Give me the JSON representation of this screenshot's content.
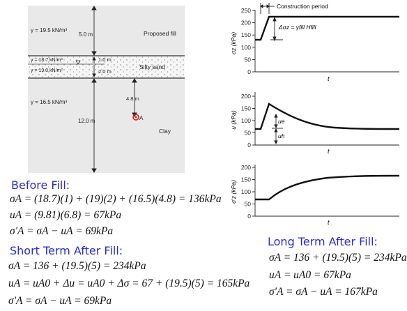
{
  "profile": {
    "layers": [
      {
        "unit_weight": "γ = 19.5 kN/m³",
        "thickness": "5.0 m",
        "name": "Proposed fill"
      },
      {
        "unit_weight": "γ = 18.7 kN/m³",
        "thickness": "1.0 m",
        "name": "Silty sand"
      },
      {
        "unit_weight": "γ = 19.0 kN/m³",
        "thickness": "2.0 m",
        "name": ""
      },
      {
        "unit_weight": "γ = 16.5 kN/m³",
        "thickness": "12.0 m",
        "name": "Clay"
      }
    ],
    "point_depth": "4.8 m",
    "point_label": "A",
    "colors": {
      "background": "#e9e9e9",
      "sand": "#f5f5f5",
      "point": "#e11b1b"
    }
  },
  "graphs": {
    "construction_label": "Construction period",
    "delta_sigma_label": "Δσz = γfill Hfill",
    "ue_label": "ue",
    "uh_label": "uh",
    "plots": [
      {
        "ylabel": "σz (kPa)",
        "xlabel": "t",
        "yticks": [
          "0",
          "50",
          "100",
          "150",
          "200",
          "250"
        ]
      },
      {
        "ylabel": "u (kPa)",
        "xlabel": "t",
        "yticks": [
          "0",
          "50",
          "100",
          "150",
          "200"
        ]
      },
      {
        "ylabel": "σ'z (kPa)",
        "xlabel": "t",
        "yticks": [
          "0",
          "50",
          "100",
          "150",
          "200"
        ]
      }
    ]
  },
  "before_fill": {
    "title": "Before Fill:",
    "lines": [
      "σA = (18.7)(1) + (19)(2) + (16.5)(4.8) = 136kPa",
      "uA = (9.81)(6.8) = 67kPa",
      "σ'A = σA − uA = 69kPa"
    ]
  },
  "short_term": {
    "title": "Short Term After Fill:",
    "lines": [
      "σA = 136 + (19.5)(5) = 234kPa",
      "uA = uA0 + Δu = uA0 + Δσ = 67 + (19.5)(5) = 165kPa",
      "σ'A = σA − uA = 69kPa"
    ]
  },
  "long_term": {
    "title": "Long Term After Fill:",
    "lines": [
      "σA = 136 + (19.5)(5) = 234kPa",
      "uA = uA0 = 67kPa",
      "σ'A = σA − uA = 167kPa"
    ]
  }
}
